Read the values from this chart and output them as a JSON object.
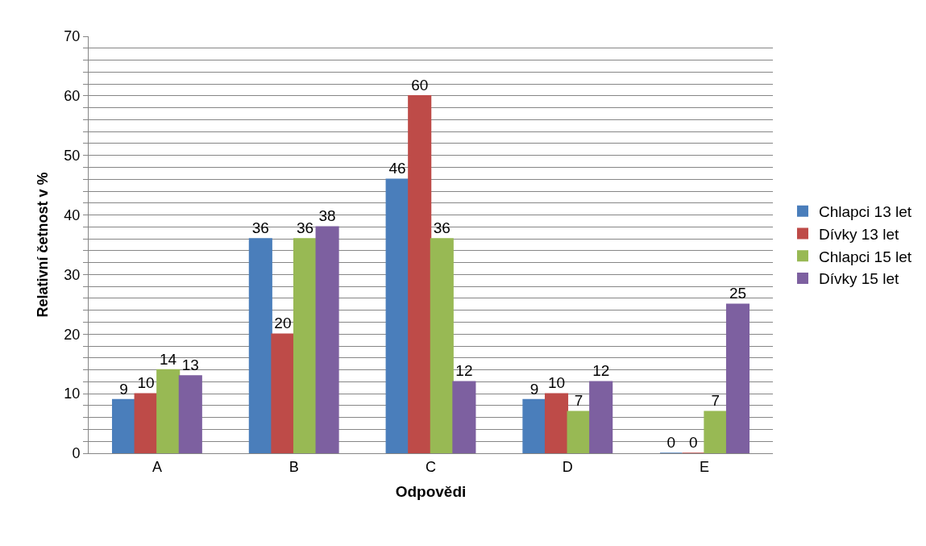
{
  "chart_data": {
    "type": "bar",
    "xlabel": "Odpovědi",
    "ylabel": "Relativní četnost v %",
    "categories": [
      "A",
      "B",
      "C",
      "D",
      "E"
    ],
    "series": [
      {
        "name": "Chlapci 13 let",
        "color": "#4a7ebb",
        "values": [
          9,
          36,
          46,
          9,
          0
        ]
      },
      {
        "name": "Dívky 13 let",
        "color": "#be4b48",
        "values": [
          10,
          20,
          60,
          10,
          0
        ]
      },
      {
        "name": "Chlapci 15 let",
        "color": "#98b954",
        "values": [
          14,
          36,
          36,
          7,
          7
        ]
      },
      {
        "name": "Dívky 15 let",
        "color": "#7d60a0",
        "values": [
          13,
          38,
          12,
          12,
          25
        ]
      }
    ],
    "ylim": [
      0,
      70
    ],
    "yticks": [
      0,
      {
        "value": 2,
        "label": null
      },
      {
        "value": 4,
        "label": null
      },
      {
        "value": 6,
        "label": null
      },
      {
        "value": 8,
        "label": null
      },
      10,
      {
        "value": 12,
        "label": null
      },
      {
        "value": 14,
        "label": null
      },
      {
        "value": 16,
        "label": null
      },
      {
        "value": 18,
        "label": null
      },
      20,
      {
        "value": 22,
        "label": null
      },
      {
        "value": 24,
        "label": null
      },
      {
        "value": 26,
        "label": null
      },
      {
        "value": 28,
        "label": null
      },
      30,
      {
        "value": 32,
        "label": null
      },
      {
        "value": 34,
        "label": null
      },
      {
        "value": 36,
        "label": null
      },
      {
        "value": 38,
        "label": null
      },
      40,
      {
        "value": 42,
        "label": null
      },
      {
        "value": 44,
        "label": null
      },
      {
        "value": 46,
        "label": null
      },
      {
        "value": 48,
        "label": null
      },
      50,
      {
        "value": 52,
        "label": null
      },
      {
        "value": 54,
        "label": null
      },
      {
        "value": 56,
        "label": null
      },
      {
        "value": 58,
        "label": null
      },
      60,
      {
        "value": 62,
        "label": null
      },
      {
        "value": 64,
        "label": null
      },
      {
        "value": 66,
        "label": null
      },
      {
        "value": 68,
        "label": null
      },
      70
    ],
    "grid": "y",
    "legend": "right",
    "data_labels": true
  }
}
